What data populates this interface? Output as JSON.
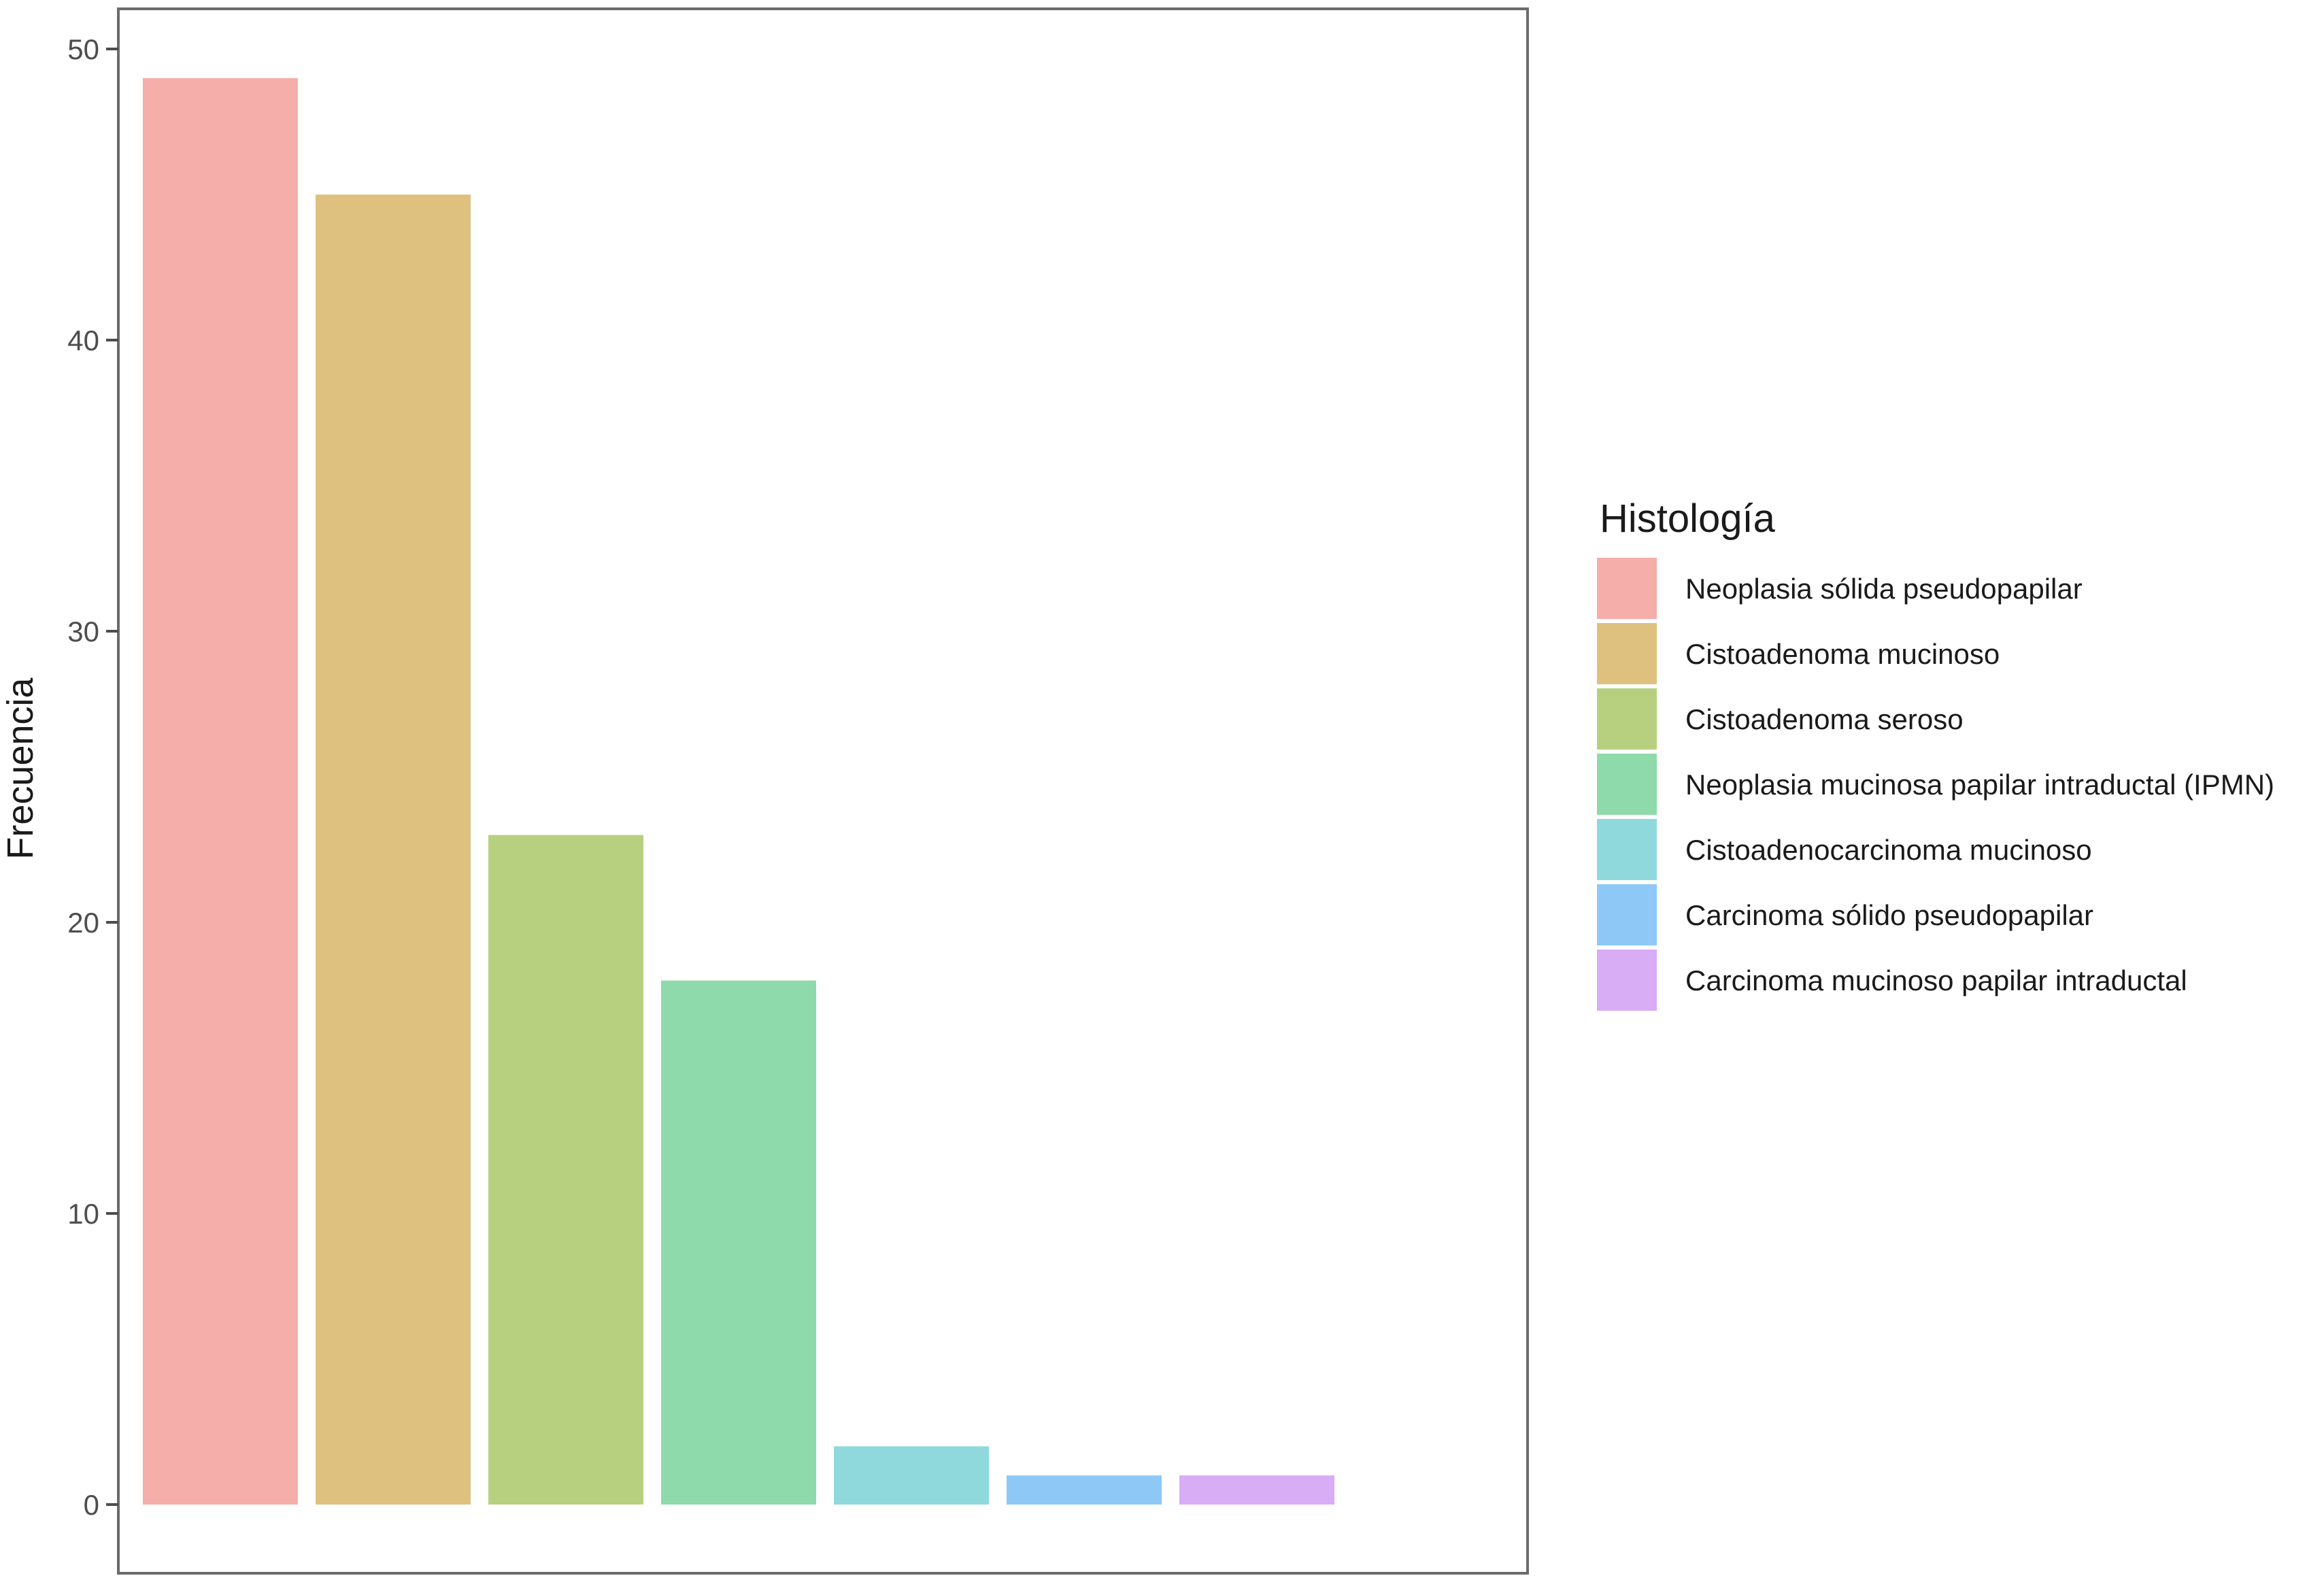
{
  "chart_data": {
    "type": "bar",
    "title": "",
    "xlabel": "",
    "ylabel": "Frecuencia",
    "ylim": [
      0,
      52
    ],
    "yticks": [
      0,
      10,
      20,
      30,
      40,
      50
    ],
    "grid": false,
    "legend_title": "Histología",
    "legend_position": "right",
    "categories": [
      "Neoplasia sólida pseudopapilar",
      "Cistoadenoma mucinoso",
      "Cistoadenoma seroso",
      "Neoplasia mucinosa papilar intraductal (IPMN)",
      "Cistoadenocarcinoma mucinoso",
      "Carcinoma sólido pseudopapilar",
      "Carcinoma mucinoso papilar intraductal"
    ],
    "values": [
      49,
      45,
      23,
      18,
      2,
      1,
      1
    ],
    "colors": [
      "#f5aeaa",
      "#dfc17f",
      "#b7d080",
      "#8fdaaa",
      "#8fd9dc",
      "#8ec8f7",
      "#d9acf6"
    ]
  }
}
